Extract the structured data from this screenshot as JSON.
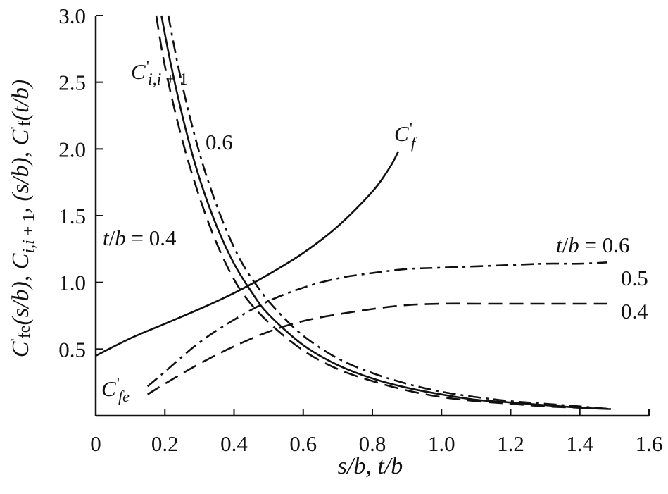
{
  "chart_data": {
    "type": "line",
    "xlabel": "s/b, t/b",
    "ylabel": "C'fe(s/b), Ci,i + 1, (s/b), C'f(t/b)",
    "xlim": [
      0,
      1.6
    ],
    "ylim": [
      0,
      3.0
    ],
    "x_ticks": [
      {
        "value": 0,
        "label": "0"
      },
      {
        "value": 0.2,
        "label": "0.2"
      },
      {
        "value": 0.4,
        "label": "0.4"
      },
      {
        "value": 0.6,
        "label": "0.6"
      },
      {
        "value": 0.8,
        "label": "0.8"
      },
      {
        "value": 1.0,
        "label": "1.0"
      },
      {
        "value": 1.2,
        "label": "1.2"
      },
      {
        "value": 1.4,
        "label": "1.4"
      },
      {
        "value": 1.6,
        "label": "1.6"
      }
    ],
    "y_ticks": [
      {
        "value": 0.5,
        "label": "0.5"
      },
      {
        "value": 1.0,
        "label": "1.0"
      },
      {
        "value": 1.5,
        "label": "1.5"
      },
      {
        "value": 2.0,
        "label": "2.0"
      },
      {
        "value": 2.5,
        "label": "2.5"
      },
      {
        "value": 3.0,
        "label": "3.0"
      }
    ],
    "grid": false,
    "series": [
      {
        "name": "C'f",
        "group": "Cf",
        "style": "solid",
        "points": [
          [
            0,
            0.45
          ],
          [
            0.1,
            0.58
          ],
          [
            0.2,
            0.69
          ],
          [
            0.3,
            0.8
          ],
          [
            0.4,
            0.92
          ],
          [
            0.5,
            1.06
          ],
          [
            0.6,
            1.22
          ],
          [
            0.7,
            1.42
          ],
          [
            0.8,
            1.68
          ],
          [
            0.85,
            1.86
          ],
          [
            0.875,
            1.98
          ]
        ]
      },
      {
        "name": "0.5",
        "group": "Cii1",
        "style": "solid",
        "points": [
          [
            0.19,
            3.0
          ],
          [
            0.22,
            2.6
          ],
          [
            0.26,
            2.15
          ],
          [
            0.3,
            1.78
          ],
          [
            0.35,
            1.42
          ],
          [
            0.4,
            1.14
          ],
          [
            0.45,
            0.93
          ],
          [
            0.5,
            0.76
          ],
          [
            0.6,
            0.53
          ],
          [
            0.7,
            0.38
          ],
          [
            0.8,
            0.28
          ],
          [
            0.9,
            0.21
          ],
          [
            1.0,
            0.16
          ],
          [
            1.1,
            0.12
          ],
          [
            1.2,
            0.1
          ],
          [
            1.3,
            0.08
          ],
          [
            1.4,
            0.06
          ],
          [
            1.49,
            0.05
          ]
        ]
      },
      {
        "name": "0.4",
        "group": "Cii1",
        "style": "dashed",
        "points": [
          [
            0.175,
            3.0
          ],
          [
            0.2,
            2.62
          ],
          [
            0.24,
            2.17
          ],
          [
            0.28,
            1.8
          ],
          [
            0.33,
            1.42
          ],
          [
            0.38,
            1.12
          ],
          [
            0.43,
            0.9
          ],
          [
            0.5,
            0.7
          ],
          [
            0.6,
            0.49
          ],
          [
            0.7,
            0.35
          ],
          [
            0.8,
            0.26
          ],
          [
            0.9,
            0.19
          ],
          [
            1.0,
            0.14
          ],
          [
            1.1,
            0.11
          ],
          [
            1.2,
            0.09
          ],
          [
            1.3,
            0.07
          ],
          [
            1.4,
            0.06
          ],
          [
            1.49,
            0.05
          ]
        ]
      },
      {
        "name": "0.6",
        "group": "Cii1",
        "style": "dashdot",
        "points": [
          [
            0.21,
            3.0
          ],
          [
            0.24,
            2.6
          ],
          [
            0.28,
            2.16
          ],
          [
            0.32,
            1.8
          ],
          [
            0.37,
            1.44
          ],
          [
            0.42,
            1.16
          ],
          [
            0.47,
            0.96
          ],
          [
            0.52,
            0.8
          ],
          [
            0.6,
            0.6
          ],
          [
            0.7,
            0.43
          ],
          [
            0.8,
            0.32
          ],
          [
            0.9,
            0.24
          ],
          [
            1.0,
            0.18
          ],
          [
            1.1,
            0.14
          ],
          [
            1.2,
            0.11
          ],
          [
            1.3,
            0.09
          ],
          [
            1.4,
            0.07
          ],
          [
            1.49,
            0.05
          ]
        ]
      },
      {
        "name": "0.6",
        "group": "Cfe",
        "style": "dashdot",
        "points": [
          [
            0.15,
            0.22
          ],
          [
            0.2,
            0.33
          ],
          [
            0.3,
            0.55
          ],
          [
            0.4,
            0.72
          ],
          [
            0.5,
            0.86
          ],
          [
            0.6,
            0.96
          ],
          [
            0.7,
            1.03
          ],
          [
            0.8,
            1.07
          ],
          [
            0.9,
            1.1
          ],
          [
            1.0,
            1.11
          ],
          [
            1.1,
            1.12
          ],
          [
            1.2,
            1.13
          ],
          [
            1.3,
            1.14
          ],
          [
            1.4,
            1.14
          ],
          [
            1.48,
            1.15
          ]
        ]
      },
      {
        "name": "0.4",
        "group": "Cfe",
        "style": "dashed",
        "points": [
          [
            0.15,
            0.16
          ],
          [
            0.2,
            0.24
          ],
          [
            0.3,
            0.39
          ],
          [
            0.4,
            0.52
          ],
          [
            0.5,
            0.63
          ],
          [
            0.6,
            0.71
          ],
          [
            0.7,
            0.76
          ],
          [
            0.8,
            0.8
          ],
          [
            0.9,
            0.83
          ],
          [
            1.0,
            0.84
          ],
          [
            1.1,
            0.84
          ],
          [
            1.2,
            0.84
          ],
          [
            1.3,
            0.84
          ],
          [
            1.4,
            0.84
          ],
          [
            1.48,
            0.84
          ]
        ]
      }
    ],
    "annotations": [
      {
        "id": "cf",
        "text": "C'f"
      },
      {
        "id": "cii1",
        "text": "C'i,i + 1"
      },
      {
        "id": "v06-left",
        "text": "0.6"
      },
      {
        "id": "tb04-left",
        "text": "t/b = 0.4"
      },
      {
        "id": "tb06-right",
        "text": "t/b = 0.6"
      },
      {
        "id": "v05-right",
        "text": "0.5"
      },
      {
        "id": "v04-right",
        "text": "0.4"
      },
      {
        "id": "cfe",
        "text": "C'fe"
      }
    ]
  }
}
